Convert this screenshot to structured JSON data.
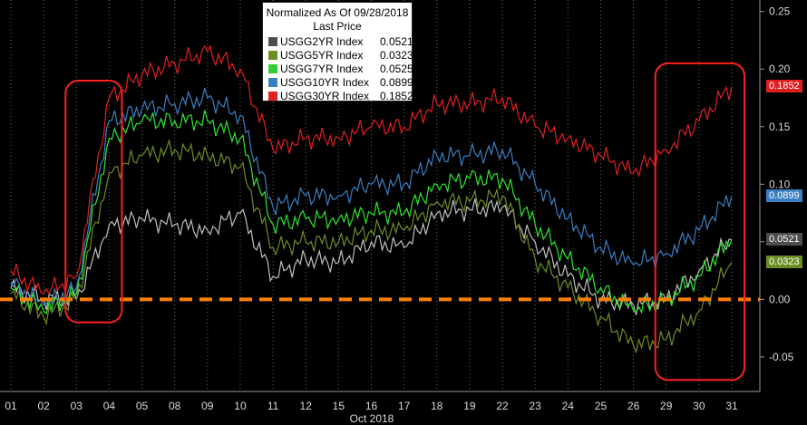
{
  "chart_data": {
    "type": "line",
    "title": "Normalized As Of 09/28/2018",
    "subtitle": "Last Price",
    "xlabel": "Oct 2018",
    "x_ticks": [
      "01",
      "02",
      "03",
      "04",
      "05",
      "08",
      "09",
      "10",
      "11",
      "12",
      "15",
      "16",
      "17",
      "18",
      "19",
      "22",
      "23",
      "24",
      "25",
      "26",
      "29",
      "30",
      "31"
    ],
    "y_ticks": [
      "0.25",
      "0.20",
      "0.15",
      "0.10",
      "0.05",
      "0.00",
      "-0.05"
    ],
    "ylim": [
      -0.08,
      0.26
    ],
    "series": [
      {
        "name": "USGG2YR Index",
        "last_price": "0.0521",
        "color": "#bfbfbf",
        "legend_color": "#4d4d4d",
        "values": [
          0.01,
          0.0,
          0.0,
          0.065,
          0.07,
          0.065,
          0.06,
          0.075,
          0.02,
          0.035,
          0.032,
          0.05,
          0.045,
          0.075,
          0.078,
          0.08,
          0.05,
          0.02,
          0.0,
          -0.005,
          0.0,
          0.025,
          0.052
        ]
      },
      {
        "name": "USGG5YR Index",
        "last_price": "0.0323",
        "color": "#6b8e23",
        "legend_color": "#6b8e23",
        "values": [
          0.005,
          -0.015,
          0.0,
          0.11,
          0.125,
          0.13,
          0.125,
          0.115,
          0.045,
          0.05,
          0.05,
          0.06,
          0.06,
          0.085,
          0.085,
          0.09,
          0.035,
          0.01,
          -0.015,
          -0.04,
          -0.035,
          -0.01,
          0.032
        ]
      },
      {
        "name": "USGG7YR Index",
        "last_price": "0.0525",
        "color": "#2ee62e",
        "legend_color": "#33cc33",
        "values": [
          0.01,
          -0.01,
          0.005,
          0.14,
          0.155,
          0.155,
          0.155,
          0.14,
          0.065,
          0.07,
          0.07,
          0.075,
          0.075,
          0.1,
          0.105,
          0.105,
          0.065,
          0.035,
          0.01,
          -0.01,
          0.0,
          0.02,
          0.052
        ]
      },
      {
        "name": "USGG10YR Index",
        "last_price": "0.0899",
        "color": "#3a7fc1",
        "legend_color": "#3a7fc1",
        "values": [
          0.015,
          -0.005,
          0.01,
          0.155,
          0.165,
          0.17,
          0.175,
          0.16,
          0.08,
          0.09,
          0.09,
          0.1,
          0.1,
          0.125,
          0.125,
          0.13,
          0.1,
          0.07,
          0.045,
          0.03,
          0.04,
          0.06,
          0.09
        ]
      },
      {
        "name": "USGG30YR Index",
        "last_price": "0.1852",
        "color": "#e02020",
        "legend_color": "#e02020",
        "values": [
          0.025,
          0.005,
          0.02,
          0.175,
          0.195,
          0.205,
          0.215,
          0.2,
          0.13,
          0.14,
          0.14,
          0.15,
          0.15,
          0.17,
          0.17,
          0.175,
          0.15,
          0.14,
          0.125,
          0.11,
          0.13,
          0.155,
          0.185
        ]
      }
    ],
    "reference_line": {
      "y": 0.0,
      "color": "#ff8000",
      "style": "dashed"
    },
    "annotations": [
      {
        "type": "rounded-rect",
        "color": "#ff2020",
        "x_from": "03",
        "x_to": "04",
        "y_from": 0.19,
        "y_to": -0.02
      },
      {
        "type": "rounded-rect",
        "color": "#ff2020",
        "x_from": "29",
        "x_to": "31",
        "y_from": 0.205,
        "y_to": -0.07
      }
    ],
    "grid": "vertical-dotted",
    "legend_position": "top-center"
  }
}
